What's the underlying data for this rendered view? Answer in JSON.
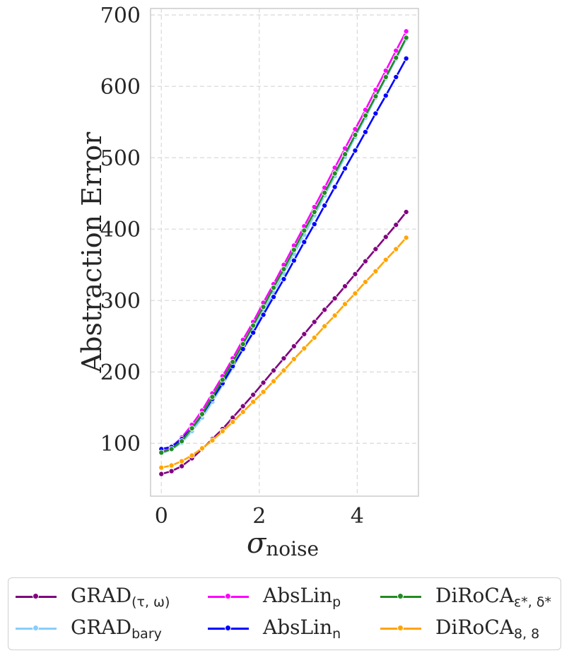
{
  "chart_data": {
    "type": "line",
    "xlabel": "σ",
    "xlabel_sub": "noise",
    "ylabel": "Abstraction Error",
    "xlim": [
      -0.22,
      5.25
    ],
    "ylim": [
      26,
      709
    ],
    "xticks": [
      0,
      2,
      4
    ],
    "yticks": [
      100,
      200,
      300,
      400,
      500,
      600,
      700
    ],
    "grid": true,
    "legend_position": "bottom",
    "x": [
      0.0,
      0.208,
      0.417,
      0.625,
      0.833,
      1.042,
      1.25,
      1.458,
      1.667,
      1.875,
      2.083,
      2.292,
      2.5,
      2.708,
      2.917,
      3.125,
      3.333,
      3.542,
      3.75,
      3.958,
      4.167,
      4.375,
      4.583,
      4.792,
      5.0
    ],
    "series": [
      {
        "name": "GRAD",
        "sub": "(τ, ω)",
        "color": "#800080",
        "values": [
          57,
          61,
          68,
          79,
          92,
          106,
          120,
          136,
          152,
          168,
          185,
          202,
          219,
          236,
          253,
          270,
          287,
          303,
          320,
          337,
          355,
          372,
          389,
          406,
          424
        ]
      },
      {
        "name": "GRAD",
        "sub": "bary",
        "color": "#87cefa",
        "values": [
          86,
          91,
          101,
          117,
          136,
          158,
          182,
          206,
          232,
          258,
          285,
          311,
          338,
          365,
          392,
          419,
          447,
          474,
          501,
          529,
          556,
          584,
          611,
          638,
          666
        ]
      },
      {
        "name": "AbsLin",
        "sub": "p",
        "color": "#ff00ff",
        "values": [
          87,
          95,
          108,
          126,
          146,
          170,
          194,
          219,
          245,
          270,
          297,
          323,
          350,
          377,
          404,
          431,
          458,
          486,
          513,
          540,
          567,
          595,
          622,
          650,
          677
        ]
      },
      {
        "name": "AbsLin",
        "sub": "n",
        "color": "#0000ff",
        "values": [
          92,
          95,
          106,
          121,
          140,
          162,
          184,
          208,
          232,
          255,
          280,
          305,
          330,
          356,
          382,
          407,
          433,
          459,
          485,
          510,
          536,
          562,
          587,
          613,
          639
        ]
      },
      {
        "name": "DiRoCA",
        "sub": "ε*, δ*",
        "color": "#228b22",
        "values": [
          87,
          92,
          103,
          121,
          141,
          165,
          189,
          214,
          239,
          265,
          291,
          318,
          344,
          371,
          398,
          424,
          451,
          478,
          505,
          532,
          559,
          586,
          613,
          640,
          668
        ]
      },
      {
        "name": "DiRoCA",
        "sub": "8, 8",
        "color": "#ffa500",
        "values": [
          66,
          69,
          75,
          83,
          93,
          104,
          117,
          130,
          144,
          158,
          172,
          187,
          202,
          218,
          233,
          248,
          264,
          279,
          295,
          310,
          326,
          341,
          357,
          372,
          388
        ]
      }
    ]
  }
}
